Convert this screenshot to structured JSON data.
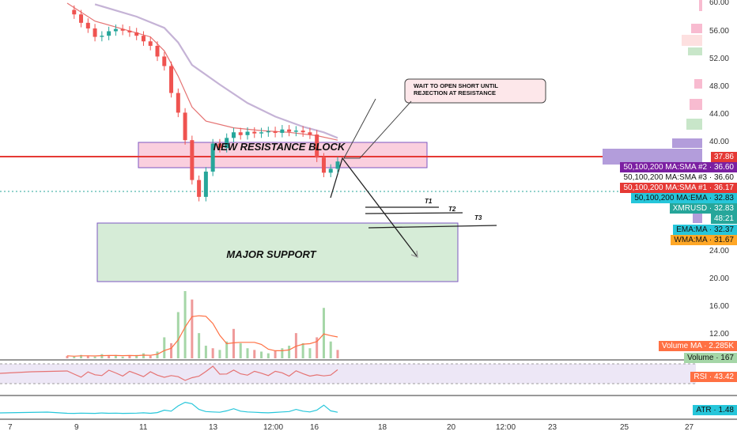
{
  "chart_data": {
    "type": "line",
    "title": "",
    "symbol": "XMRUSD",
    "y_axis_ticks": [
      "60.00",
      "56.00",
      "52.00",
      "48.00",
      "44.00",
      "40.00",
      "24.00",
      "20.00",
      "16.00",
      "12.00"
    ],
    "x_axis_ticks": [
      "7",
      "9",
      "11",
      "13",
      "12:00",
      "16",
      "18",
      "20",
      "12:00",
      "23",
      "25",
      "27"
    ],
    "ylim": [
      10,
      61
    ],
    "price_series": [
      [
        0,
        59.8
      ],
      [
        1,
        59.0
      ],
      [
        2,
        57.5
      ],
      [
        3,
        56.5
      ],
      [
        4,
        55.0
      ],
      [
        5,
        55.2
      ],
      [
        6,
        56.0
      ],
      [
        7,
        56.4
      ],
      [
        8,
        56.1
      ],
      [
        9,
        55.8
      ],
      [
        10,
        55.2
      ],
      [
        11,
        54.2
      ],
      [
        12,
        53.4
      ],
      [
        13,
        51.5
      ],
      [
        14,
        49.8
      ],
      [
        15,
        45.0
      ],
      [
        16,
        41.5
      ],
      [
        17,
        36.6
      ],
      [
        18,
        29.5
      ],
      [
        19,
        26.5
      ],
      [
        20,
        31.0
      ],
      [
        21,
        36.0
      ],
      [
        22,
        35.2
      ],
      [
        23,
        37.0
      ],
      [
        24,
        38.0
      ],
      [
        25,
        37.5
      ],
      [
        26,
        38.1
      ],
      [
        27,
        37.8
      ],
      [
        28,
        38.0
      ],
      [
        29,
        38.2
      ],
      [
        30,
        37.9
      ],
      [
        31,
        38.5
      ],
      [
        32,
        38.1
      ],
      [
        33,
        38.3
      ],
      [
        34,
        38.0
      ],
      [
        35,
        37.6
      ],
      [
        36,
        33.5
      ],
      [
        37,
        30.8
      ],
      [
        38,
        31.5
      ],
      [
        39,
        32.8
      ]
    ],
    "ema_series": [
      [
        0,
        61.0
      ],
      [
        4,
        57.8
      ],
      [
        8,
        56.4
      ],
      [
        12,
        55.0
      ],
      [
        14,
        52.5
      ],
      [
        16,
        48.0
      ],
      [
        18,
        42.5
      ],
      [
        20,
        40.0
      ],
      [
        24,
        38.8
      ],
      [
        28,
        38.3
      ],
      [
        32,
        38.0
      ],
      [
        36,
        37.4
      ],
      [
        39,
        36.6
      ]
    ],
    "sma_series": [
      [
        4,
        60.8
      ],
      [
        10,
        58.6
      ],
      [
        14,
        56.6
      ],
      [
        16,
        54.0
      ],
      [
        18,
        50.0
      ],
      [
        22,
        46.5
      ],
      [
        26,
        43.2
      ],
      [
        30,
        40.8
      ],
      [
        34,
        39.0
      ],
      [
        37,
        38.0
      ],
      [
        39,
        37.0
      ]
    ],
    "volume": [
      3,
      2,
      4,
      3,
      2,
      5,
      3,
      4,
      2,
      3,
      4,
      6,
      3,
      8,
      25,
      18,
      55,
      80,
      70,
      30,
      15,
      12,
      10,
      20,
      35,
      18,
      12,
      10,
      8,
      6,
      9,
      12,
      15,
      30,
      18,
      12,
      25,
      60,
      20,
      10
    ],
    "rsi_range": [
      30,
      70
    ],
    "resistance_price": 37.86,
    "support_range": [
      20.0,
      28.5
    ],
    "resistance_block_range": [
      37.5,
      40.0
    ],
    "targets": {
      "t1": 30.5,
      "t2": 29.8,
      "t3": 28.7
    }
  },
  "annotations": {
    "resistance_label": "NEW RESISTANCE BLOCK",
    "support_label": "MAJOR SUPPORT",
    "callout_line1": "WAIT TO OPEN SHORT UNTIL",
    "callout_line2": "REJECTION AT RESISTANCE",
    "t1": "T1",
    "t2": "T2",
    "t3": "T3"
  },
  "price_tags": [
    {
      "label": "37.86",
      "color": "#e53935",
      "fg": "#ffffff"
    },
    {
      "label": "50,100,200 MA:SMA #2",
      "value": "36.60",
      "color": "#7b1fa2",
      "fg": "#ffffff"
    },
    {
      "label": "50,100,200 MA:SMA #3",
      "value": "36.60",
      "color": "#ffffff",
      "fg": "#111111"
    },
    {
      "label": "50,100,200 MA:SMA #1",
      "value": "36.17",
      "color": "#e53935",
      "fg": "#ffffff"
    },
    {
      "label": "50,100,200 MA:EMA",
      "value": "32.83",
      "color": "#26c6da",
      "fg": "#111111"
    },
    {
      "label": "XMRUSD",
      "value": "32.83",
      "color": "#26a69a",
      "fg": "#ffffff"
    },
    {
      "label": "48:21",
      "color": "#26a69a",
      "fg": "#ffffff"
    },
    {
      "label": "EMA:MA",
      "value": "32.37",
      "color": "#26c6da",
      "fg": "#111111"
    },
    {
      "label": "WMA:MA",
      "value": "31.67",
      "color": "#ffa726",
      "fg": "#111111"
    }
  ],
  "indicator_tags": {
    "volume_ma": "Volume MA · 2.285K",
    "volume": "Volume · 167",
    "rsi": "RSI · 43.42",
    "atr": "ATR · 1.48"
  },
  "colors": {
    "candle_up": "#26a69a",
    "candle_down": "#ef5350",
    "resistance_line": "#e53935",
    "resistance_fill": "#f8bbd0",
    "support_fill": "#c8e6c9",
    "callout_fill": "#fde7ea"
  }
}
